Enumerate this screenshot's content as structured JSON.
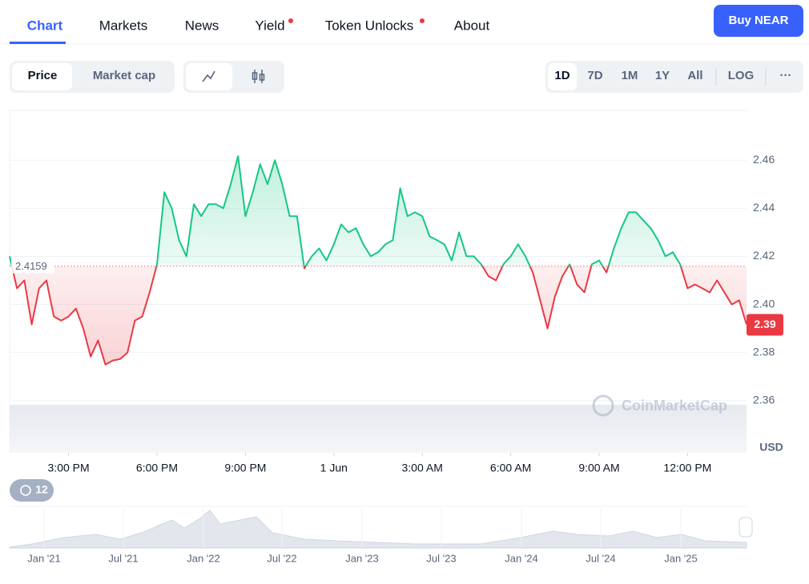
{
  "nav": {
    "tabs": [
      "Chart",
      "Markets",
      "News",
      "Yield",
      "Token Unlocks",
      "About"
    ],
    "button": "Buy NEAR"
  },
  "toolbar": {
    "views": [
      "Price",
      "Market cap"
    ],
    "ranges": [
      "1D",
      "7D",
      "1M",
      "1Y",
      "All"
    ],
    "scale": "LOG",
    "more": "···"
  },
  "chart_data": {
    "type": "line",
    "values": [
      2.42,
      2.4067,
      2.41,
      2.3917,
      2.4067,
      2.41,
      2.395,
      2.3933,
      2.395,
      2.3983,
      2.39,
      2.3783,
      2.385,
      2.375,
      2.3767,
      2.3773,
      2.38,
      2.3933,
      2.395,
      2.405,
      2.4167,
      2.4467,
      2.44,
      2.4267,
      2.42,
      2.4417,
      2.4367,
      2.4417,
      2.4417,
      2.44,
      2.45,
      2.4617,
      2.4367,
      2.4467,
      2.4583,
      2.45,
      2.46,
      2.45,
      2.4367,
      2.4367,
      2.415,
      2.42,
      2.4233,
      2.4183,
      2.425,
      2.4333,
      2.43,
      2.4317,
      2.425,
      2.42,
      2.4217,
      2.425,
      2.4267,
      2.4483,
      2.4367,
      2.4383,
      2.4367,
      2.4283,
      2.4267,
      2.425,
      2.4183,
      2.43,
      2.42,
      2.42,
      2.4167,
      2.4117,
      2.41,
      2.4167,
      2.42,
      2.425,
      2.42,
      2.4133,
      2.4017,
      2.39,
      2.4033,
      2.4117,
      2.4167,
      2.4083,
      2.405,
      2.4167,
      2.4183,
      2.4133,
      2.4233,
      2.4317,
      2.4383,
      2.4383,
      2.435,
      2.4317,
      2.4267,
      2.42,
      2.4217,
      2.4167,
      2.4067,
      2.4083,
      2.4067,
      2.405,
      2.41,
      2.405,
      2.4,
      2.4017,
      2.3917
    ],
    "xlim": [
      0,
      100
    ],
    "xticks": [
      {
        "value": 8,
        "label": "3:00 PM"
      },
      {
        "value": 20,
        "label": "6:00 PM"
      },
      {
        "value": 32,
        "label": "9:00 PM"
      },
      {
        "value": 44,
        "label": "1 Jun"
      },
      {
        "value": 56,
        "label": "3:00 AM"
      },
      {
        "value": 68,
        "label": "6:00 AM"
      },
      {
        "value": 80,
        "label": "9:00 AM"
      },
      {
        "value": 92,
        "label": "12:00 PM"
      }
    ],
    "ylim": [
      2.3383,
      2.4807
    ],
    "yticks": [
      2.36,
      2.38,
      {
        "value": 2.4,
        "label": "2.40"
      },
      2.42,
      2.44,
      2.46
    ],
    "grid": true,
    "baseline": 2.4159,
    "last_price_label": "2.39",
    "up_color": "#16c784",
    "down_color": "#ea3943",
    "currency": "USD",
    "watermark": "CoinMarketCap"
  },
  "history_badge": "12",
  "navigator": {
    "labels": [
      "Jan '21",
      "Jul '21",
      "Jan '22",
      "Jul '22",
      "Jan '23",
      "Jul '23",
      "Jan '24",
      "Jul '24",
      "Jan '25"
    ]
  }
}
